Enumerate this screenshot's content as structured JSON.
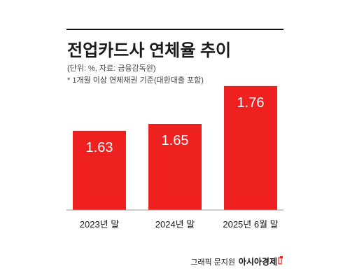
{
  "chart_data": {
    "type": "bar",
    "title": "전업카드사 연체율 추이",
    "unit_note": "(단위: %, 자료: 금융감독원)",
    "footnote": "* 1개월 이상 연체채권 기준(대환대출 포함)",
    "categories": [
      "2023년 말",
      "2024년 말",
      "2025년 6월 말"
    ],
    "values": [
      1.63,
      1.65,
      1.76
    ],
    "value_labels": [
      "1.63",
      "1.65",
      "1.76"
    ],
    "bar_color": "#ee2020",
    "value_label_color": "#ffffff",
    "grid": false,
    "legend": "none"
  },
  "credit": {
    "graphic": "그래픽 문지원",
    "brand": "아시아경제"
  },
  "colors": {
    "background": "#ffffff",
    "text": "#1a1a1a",
    "muted_text": "#444444",
    "rule": "#111111",
    "baseline": "#999999",
    "brand_mark": "#ee2020"
  }
}
